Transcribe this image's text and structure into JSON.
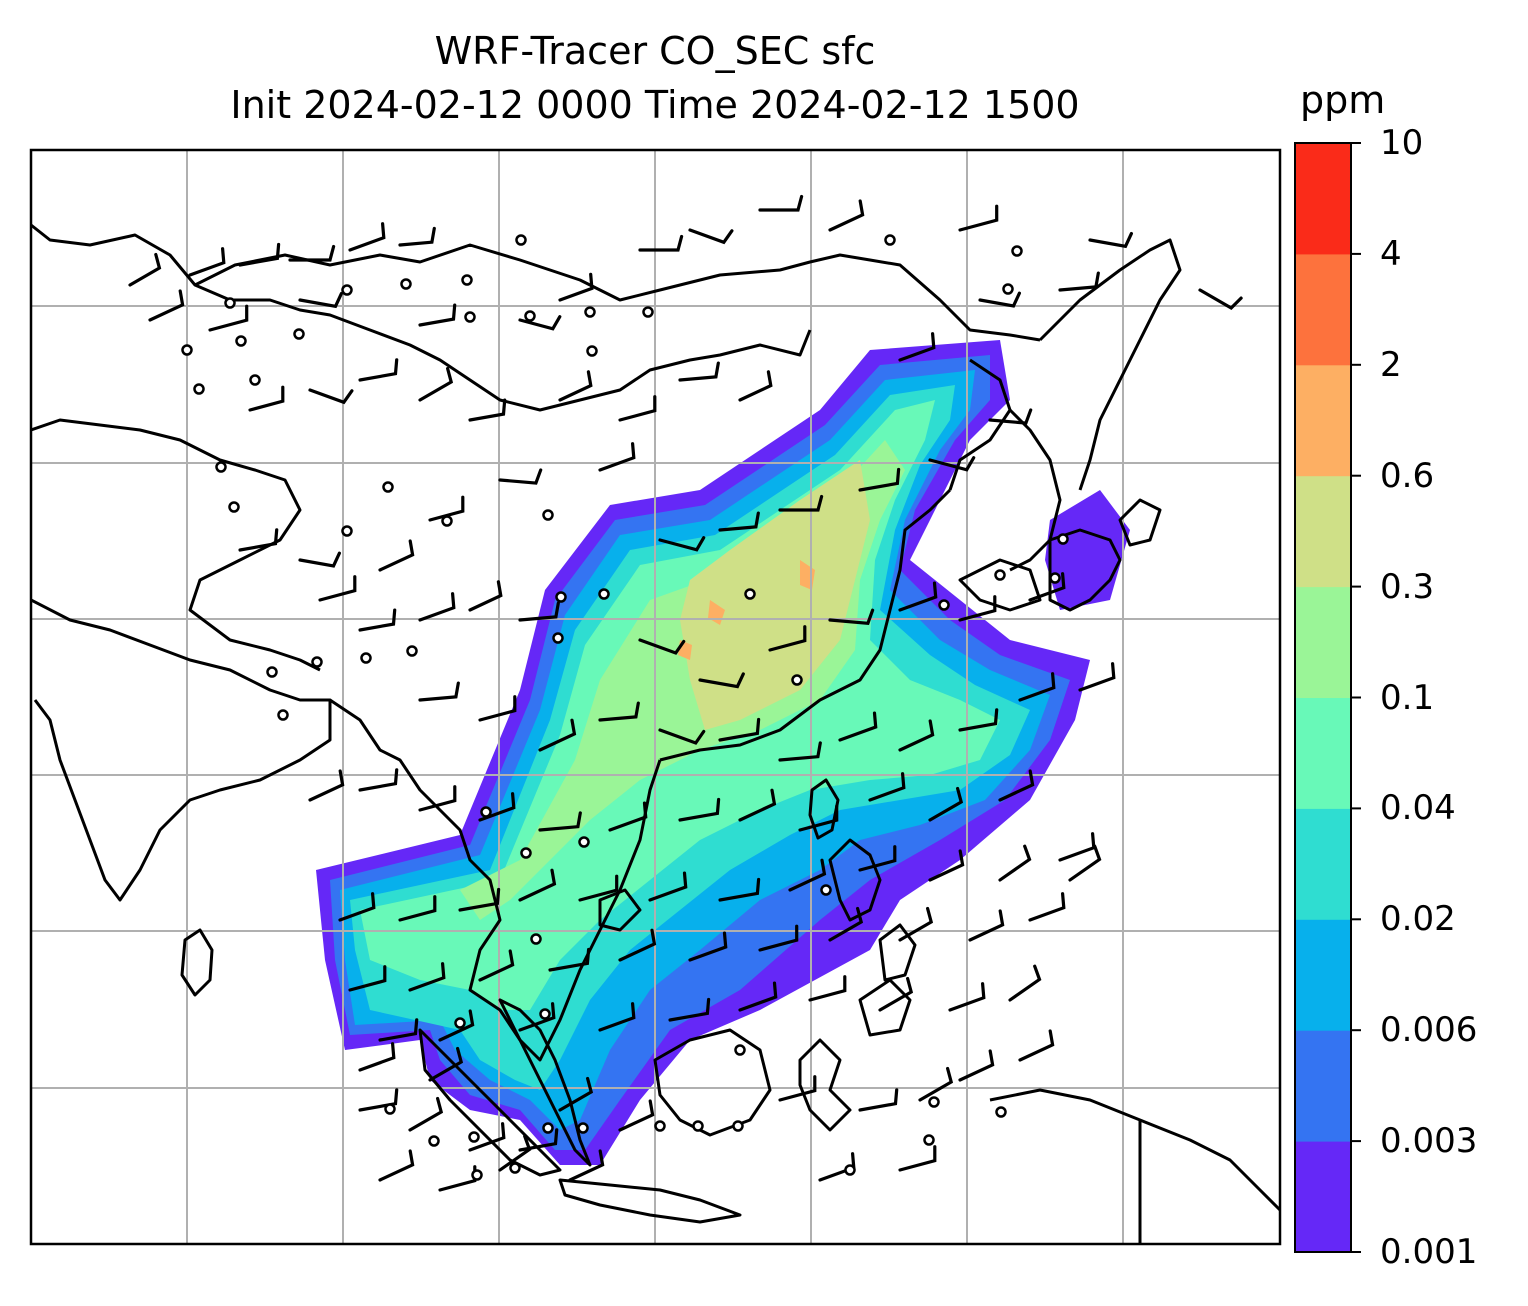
{
  "title": {
    "line1": "WRF-Tracer CO_SEC sfc",
    "line2": "Init 2024-02-12 0000 Time 2024-02-12 1500"
  },
  "colorbar": {
    "unit": "ppm",
    "levels": [
      "0.001",
      "0.003",
      "0.006",
      "0.02",
      "0.04",
      "0.1",
      "0.3",
      "0.6",
      "2",
      "4",
      "10"
    ],
    "colors": [
      "#6528f7",
      "#3474f2",
      "#07b0ec",
      "#2fddd1",
      "#68f9b8",
      "#9af597",
      "#cfe087",
      "#fdaf63",
      "#fd723d",
      "#fa2b19"
    ]
  },
  "map": {
    "background": "#ffffff",
    "gridline_color": "#b0b0b0",
    "coastline_color": "#000000",
    "wind_barb_color": "#000000",
    "calm_marker": "circle"
  }
}
